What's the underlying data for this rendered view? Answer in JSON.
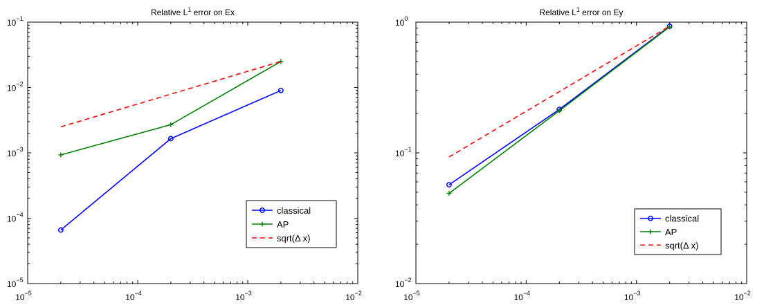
{
  "chart_data": [
    {
      "type": "line",
      "title": "Relative L",
      "title_sup": "1",
      "title_rest": " error on Ex",
      "xscale": "log",
      "yscale": "log",
      "xlim": [
        1e-05,
        0.01
      ],
      "ylim": [
        1e-05,
        0.1
      ],
      "x_ticks": [
        {
          "base": "10",
          "exp": "−5"
        },
        {
          "base": "10",
          "exp": "−4"
        },
        {
          "base": "10",
          "exp": "−3"
        },
        {
          "base": "10",
          "exp": "−2"
        }
      ],
      "y_ticks": [
        {
          "base": "10",
          "exp": "−5"
        },
        {
          "base": "10",
          "exp": "−4"
        },
        {
          "base": "10",
          "exp": "−3"
        },
        {
          "base": "10",
          "exp": "−2"
        },
        {
          "base": "10",
          "exp": "−1"
        }
      ],
      "grid": false,
      "legend_position": "lower-right",
      "series": [
        {
          "name": "classical",
          "color": "#0000ff",
          "marker": "circle",
          "dash": "solid",
          "x": [
            2e-05,
            0.0002,
            0.002
          ],
          "y": [
            6.6e-05,
            0.00165,
            0.009
          ]
        },
        {
          "name": "AP",
          "color": "#008000",
          "marker": "plus",
          "dash": "solid",
          "x": [
            2e-05,
            0.0002,
            0.002
          ],
          "y": [
            0.00093,
            0.0027,
            0.025
          ]
        },
        {
          "name": "sqrt(Δ x)",
          "color": "#ff0000",
          "marker": "none",
          "dash": "dashed",
          "x": [
            2e-05,
            0.002
          ],
          "y": [
            0.0025,
            0.025
          ]
        }
      ]
    },
    {
      "type": "line",
      "title": "Relative L",
      "title_sup": "1",
      "title_rest": " error on Ey",
      "xscale": "log",
      "yscale": "log",
      "xlim": [
        1e-05,
        0.01
      ],
      "ylim": [
        0.01,
        1
      ],
      "x_ticks": [
        {
          "base": "10",
          "exp": "−5"
        },
        {
          "base": "10",
          "exp": "−4"
        },
        {
          "base": "10",
          "exp": "−3"
        },
        {
          "base": "10",
          "exp": "−2"
        }
      ],
      "y_ticks": [
        {
          "base": "10",
          "exp": "−2"
        },
        {
          "base": "10",
          "exp": "−1"
        },
        {
          "base": "10",
          "exp": "0"
        }
      ],
      "grid": false,
      "legend_position": "lower-right",
      "series": [
        {
          "name": "classical",
          "color": "#0000ff",
          "marker": "circle",
          "dash": "solid",
          "x": [
            2e-05,
            0.0002,
            0.002
          ],
          "y": [
            0.057,
            0.215,
            0.93
          ]
        },
        {
          "name": "AP",
          "color": "#008000",
          "marker": "plus",
          "dash": "solid",
          "x": [
            2e-05,
            0.0002,
            0.002
          ],
          "y": [
            0.049,
            0.21,
            0.92
          ]
        },
        {
          "name": "sqrt(Δ x)",
          "color": "#ff0000",
          "marker": "none",
          "dash": "dashed",
          "x": [
            2e-05,
            0.002
          ],
          "y": [
            0.093,
            0.93
          ]
        }
      ]
    }
  ]
}
